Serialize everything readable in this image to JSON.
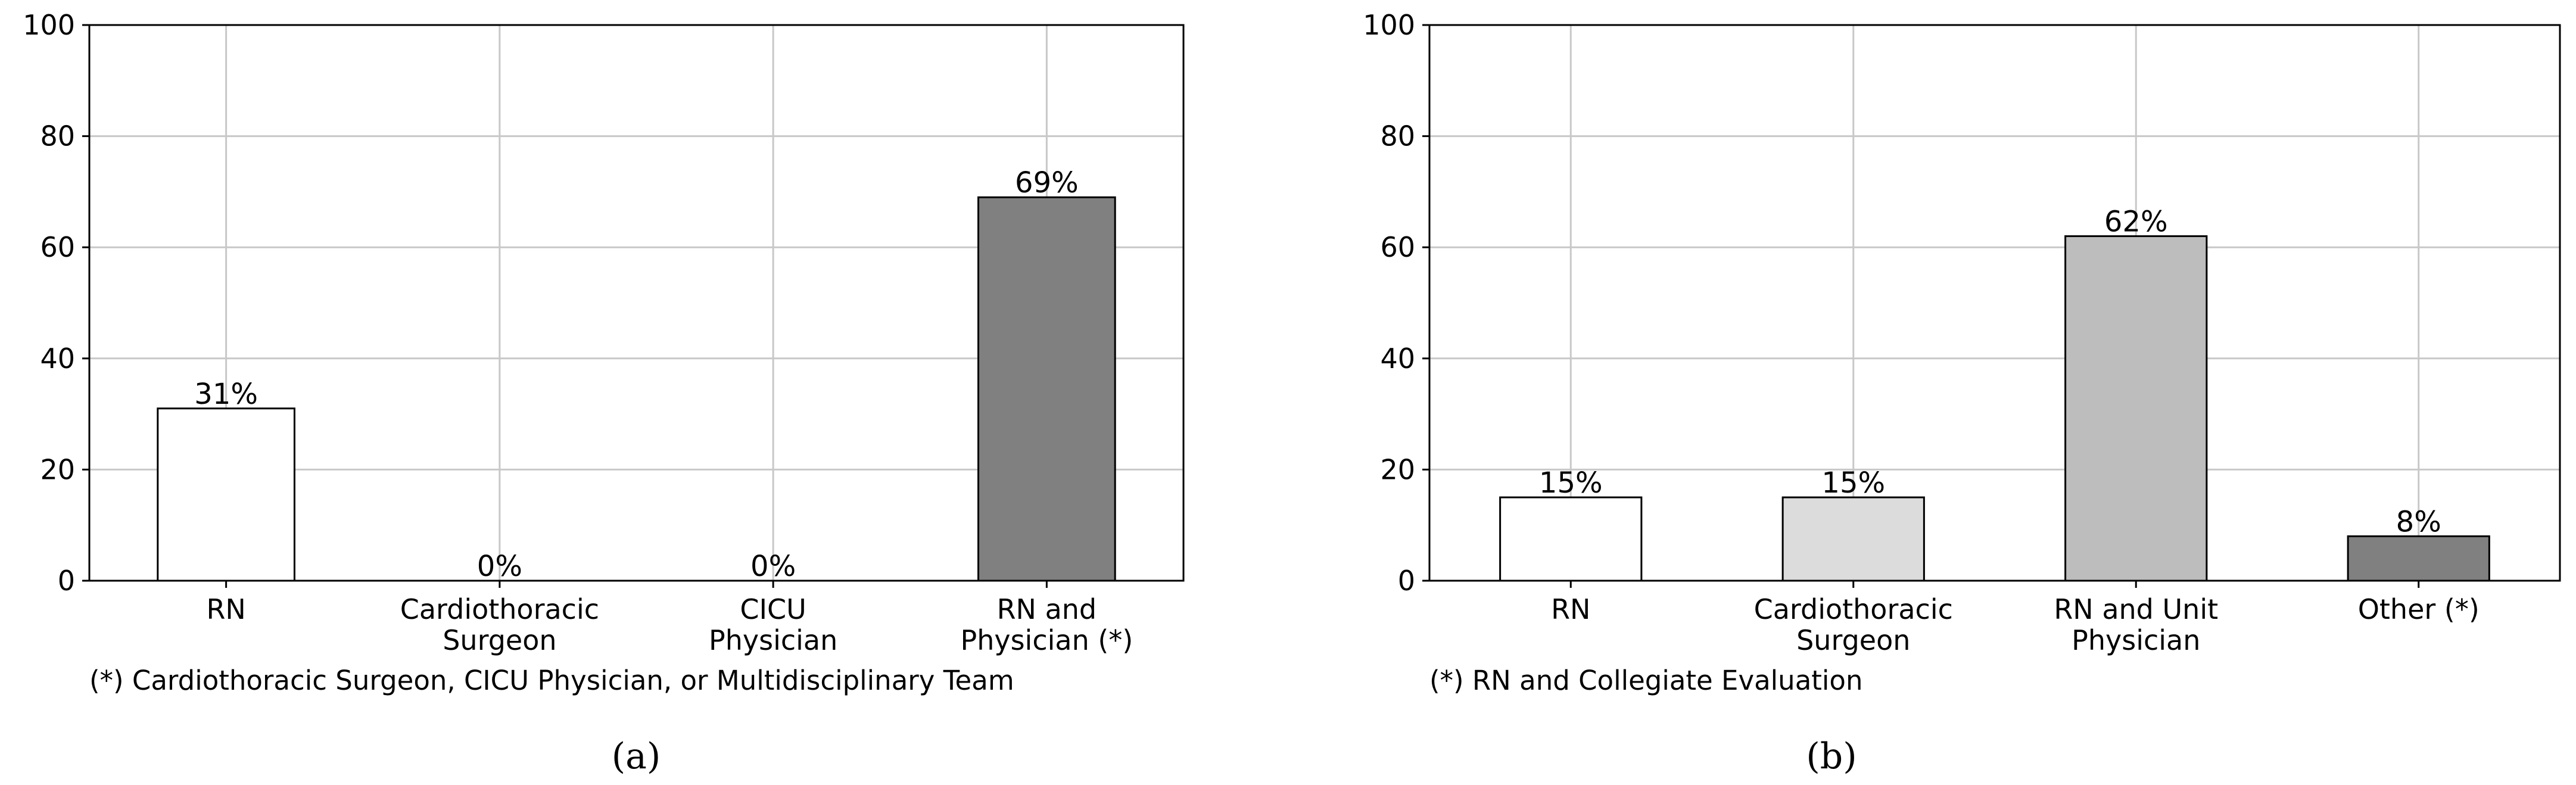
{
  "chart_data": [
    {
      "type": "bar",
      "panel_label": "(a)",
      "categories": [
        "RN",
        "Cardiothoracic\nSurgeon",
        "CICU\nPhysician",
        "RN and\nPhysician (*)"
      ],
      "values": [
        31,
        0,
        0,
        69
      ],
      "value_labels": [
        "31%",
        "0%",
        "0%",
        "69%"
      ],
      "bar_colors": [
        "#ffffff",
        "#ffffff",
        "#ffffff",
        "#808080"
      ],
      "ylim": [
        0,
        100
      ],
      "yticks": [
        "0",
        "20",
        "40",
        "60",
        "80",
        "100"
      ],
      "grid": true,
      "footnote": "(*) Cardiothoracic Surgeon, CICU Physician, or Multidisciplinary Team"
    },
    {
      "type": "bar",
      "panel_label": "(b)",
      "categories": [
        "RN",
        "Cardiothoracic\nSurgeon",
        "RN and Unit\nPhysician",
        "Other (*)"
      ],
      "values": [
        15,
        15,
        62,
        8
      ],
      "value_labels": [
        "15%",
        "15%",
        "62%",
        "8%"
      ],
      "bar_colors": [
        "#ffffff",
        "#dcdcdc",
        "#bdbdbd",
        "#808080"
      ],
      "ylim": [
        0,
        100
      ],
      "yticks": [
        "0",
        "20",
        "40",
        "60",
        "80",
        "100"
      ],
      "grid": true,
      "footnote": "(*) RN and Collegiate Evaluation"
    }
  ]
}
